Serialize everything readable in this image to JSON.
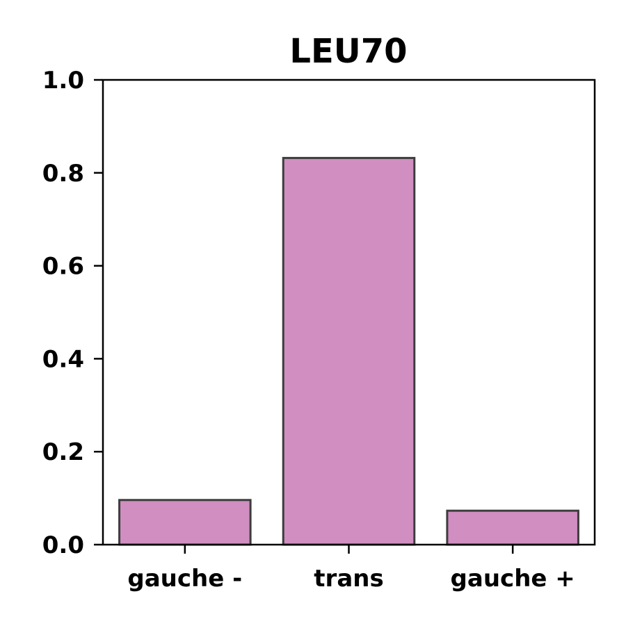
{
  "chart_data": {
    "type": "bar",
    "title": "LEU70",
    "xlabel": "",
    "ylabel": "",
    "categories": [
      "gauche -",
      "trans",
      "gauche +"
    ],
    "values": [
      0.096,
      0.832,
      0.073
    ],
    "ylim": [
      0,
      1.0
    ],
    "yticks": [
      0.0,
      0.2,
      0.4,
      0.6,
      0.8,
      1.0
    ],
    "ytick_labels": [
      "0.0",
      "0.2",
      "0.4",
      "0.6",
      "0.8",
      "1.0"
    ],
    "grid": false,
    "legend": "none",
    "colors": {
      "bar_fill": "#d18ec1",
      "bar_edge": "#3d3d3d",
      "axis": "#000000",
      "background": "#ffffff"
    }
  }
}
